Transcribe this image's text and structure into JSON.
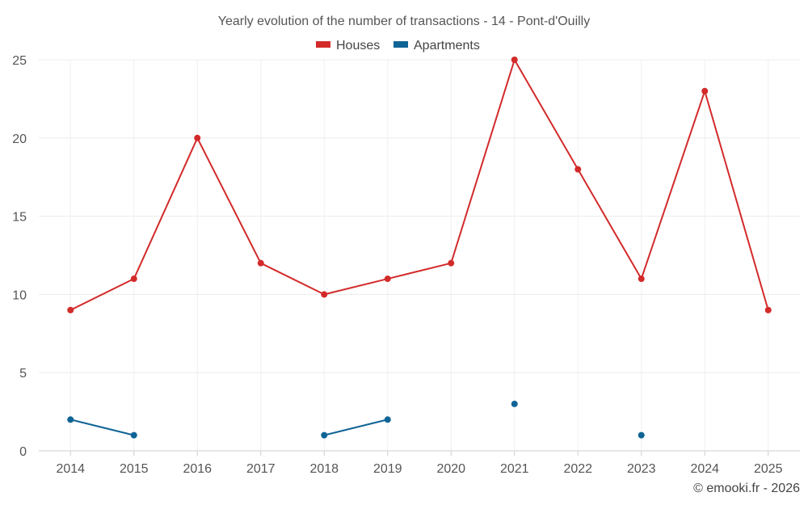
{
  "chart_data": {
    "type": "line",
    "title": "Yearly evolution of the number of transactions - 14 - Pont-d'Ouilly",
    "categories": [
      "2014",
      "2015",
      "2016",
      "2017",
      "2018",
      "2019",
      "2020",
      "2021",
      "2022",
      "2023",
      "2024",
      "2025"
    ],
    "ylim": [
      0,
      25
    ],
    "yticks": [
      0,
      5,
      10,
      15,
      20,
      25
    ],
    "grid": true,
    "legend_position": "top-center",
    "series": [
      {
        "name": "Houses",
        "color": "#d32a2a",
        "values": [
          9,
          11,
          20,
          12,
          10,
          11,
          12,
          25,
          18,
          11,
          23,
          9
        ]
      },
      {
        "name": "Apartments",
        "color": "#0f6496",
        "values": [
          2,
          1,
          null,
          null,
          1,
          2,
          null,
          3,
          null,
          1,
          null,
          null
        ]
      }
    ]
  },
  "credit": "© emooki.fr - 2026"
}
